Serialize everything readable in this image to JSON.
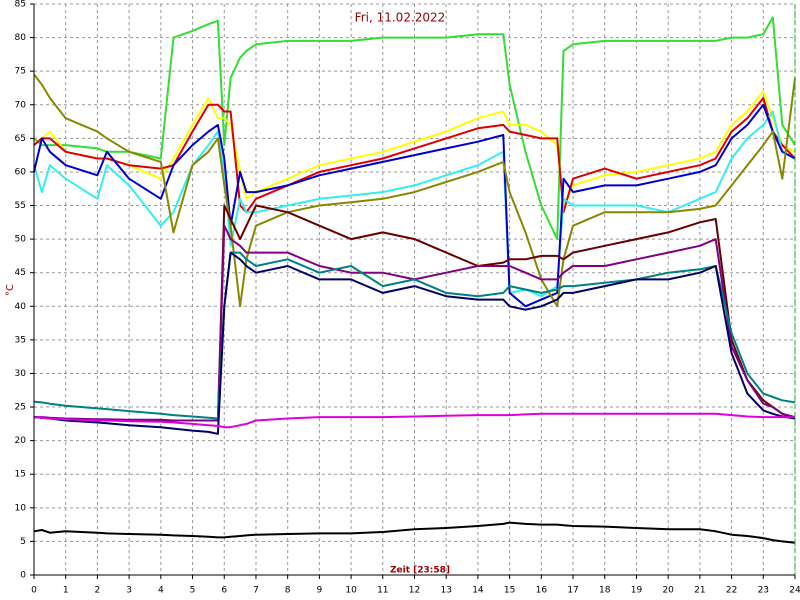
{
  "chart_data": {
    "type": "line",
    "title": "Fri, 11.02.2022",
    "x_label": "Zeit [23:58]",
    "y_label": "°C",
    "xlim": [
      0,
      24
    ],
    "xticks": [
      0,
      1,
      2,
      3,
      4,
      5,
      6,
      7,
      8,
      9,
      10,
      11,
      12,
      13,
      14,
      15,
      16,
      17,
      18,
      19,
      20,
      21,
      22,
      23,
      24
    ],
    "ylim": [
      0,
      85
    ],
    "yticks": [
      0,
      5,
      10,
      15,
      20,
      25,
      30,
      35,
      40,
      45,
      50,
      55,
      60,
      65,
      70,
      75,
      80,
      85
    ],
    "grid": true,
    "x": [
      0,
      0.25,
      0.5,
      1,
      2,
      2.3,
      3,
      4,
      4.4,
      5,
      5.5,
      5.8,
      6,
      6.2,
      6.5,
      6.7,
      7,
      8,
      9,
      10,
      11,
      12,
      13,
      14,
      14.8,
      15,
      15.5,
      16,
      16.5,
      16.7,
      17,
      18,
      19,
      20,
      21,
      21.5,
      22,
      22.5,
      23,
      23.3,
      23.6,
      24
    ],
    "series": [
      {
        "color": "#33dd33",
        "values": [
          65,
          64,
          64,
          64,
          63.5,
          63,
          63,
          62,
          80,
          81,
          82,
          82.5,
          64,
          74,
          77,
          78,
          79,
          79.5,
          79.5,
          79.5,
          80,
          80,
          80,
          80.5,
          80.5,
          73,
          63,
          55,
          50,
          78,
          79,
          79.5,
          79.5,
          79.5,
          79.5,
          79.5,
          80,
          80,
          80.5,
          83,
          67,
          64
        ]
      },
      {
        "color": "#ffff00",
        "values": [
          64,
          65,
          66,
          63,
          62,
          62,
          61,
          59,
          62,
          67,
          71,
          68,
          68,
          67,
          60,
          56,
          57,
          59,
          61,
          62,
          63,
          64.5,
          66,
          68,
          69,
          67,
          67,
          66,
          64,
          55,
          58,
          59.5,
          60,
          61,
          62,
          63,
          67,
          69,
          72,
          68,
          64,
          63
        ]
      },
      {
        "color": "#dd0000",
        "values": [
          64,
          65,
          65,
          63,
          62,
          62,
          61,
          60.5,
          61,
          66,
          70,
          70,
          69,
          69,
          55,
          54,
          56,
          58,
          60,
          61,
          62,
          63.5,
          65,
          66.5,
          67,
          66,
          65.5,
          65,
          65,
          54,
          59,
          60.5,
          59,
          60,
          61,
          62,
          66,
          68,
          71,
          66,
          64,
          62
        ]
      },
      {
        "color": "#33eeee",
        "values": [
          61,
          57,
          61,
          59,
          56,
          61,
          58,
          52,
          54,
          61,
          64,
          66,
          60,
          49,
          56,
          54,
          54,
          55,
          56,
          56.5,
          57,
          58,
          59.5,
          61,
          63,
          42,
          42.5,
          41.5,
          43,
          56,
          55,
          55,
          55,
          54,
          56,
          57,
          62,
          65,
          67,
          69,
          63,
          62
        ]
      },
      {
        "color": "#0000cc",
        "values": [
          60,
          65,
          63,
          61,
          59.5,
          63,
          59,
          56,
          61,
          64,
          66,
          67,
          62,
          52,
          60,
          57,
          57,
          58,
          59.5,
          60.5,
          61.5,
          62.5,
          63.5,
          64.5,
          65.5,
          42,
          40,
          41,
          42,
          59,
          57,
          58,
          58,
          59,
          60,
          61,
          65,
          67,
          70,
          66,
          63,
          62
        ]
      },
      {
        "color": "#888800",
        "values": [
          74.5,
          73,
          71,
          68,
          66,
          65,
          63,
          61.5,
          51,
          61,
          63,
          65,
          58,
          52,
          40,
          47,
          52,
          54,
          55,
          55.5,
          56,
          57,
          58.5,
          60,
          61.5,
          57,
          51,
          44,
          40,
          47,
          52,
          54,
          54,
          54,
          54.5,
          55,
          58,
          61,
          64,
          66,
          59,
          74
        ]
      },
      {
        "color": "#660000",
        "values": [
          23.5,
          23.4,
          23.3,
          23.2,
          23.1,
          23.1,
          23,
          23,
          23,
          23,
          23,
          23,
          55,
          53,
          50,
          52,
          55,
          54,
          52,
          50,
          51,
          50,
          48,
          46,
          46.5,
          47,
          47,
          47.5,
          47.5,
          47,
          48,
          49,
          50,
          51,
          52.5,
          53,
          35,
          29,
          26,
          25,
          24,
          23.3
        ]
      },
      {
        "color": "#800080",
        "values": [
          23.5,
          23.5,
          23.4,
          23.3,
          23.2,
          23.2,
          23.1,
          23.1,
          23,
          23,
          23,
          23,
          52,
          50,
          49,
          48,
          48,
          48,
          46,
          45,
          45,
          44,
          45,
          46,
          46,
          46,
          45,
          44,
          44,
          45,
          46,
          46,
          47,
          48,
          49,
          50,
          34,
          29,
          25.5,
          25,
          24,
          23.5
        ]
      },
      {
        "color": "#008080",
        "values": [
          25.8,
          25.7,
          25.5,
          25.2,
          24.8,
          24.7,
          24.4,
          24,
          23.8,
          23.6,
          23.4,
          23.3,
          40,
          48,
          48,
          47,
          46,
          47,
          45,
          46,
          43,
          44,
          42,
          41.5,
          42,
          43,
          42.5,
          42,
          42.5,
          43,
          43,
          43.5,
          44,
          45,
          45.5,
          46,
          36,
          30,
          27,
          26.5,
          26,
          25.7
        ]
      },
      {
        "color": "#000066",
        "values": [
          23.5,
          23.4,
          23.3,
          23,
          22.7,
          22.6,
          22.3,
          22,
          21.8,
          21.5,
          21.3,
          21,
          40,
          48,
          47,
          46,
          45,
          46,
          44,
          44,
          42,
          43,
          41.5,
          41,
          41,
          40,
          39.5,
          40,
          41,
          42,
          42,
          43,
          44,
          44,
          45,
          46,
          33,
          27,
          24.5,
          24,
          23.6,
          23.3
        ]
      },
      {
        "color": "#dd00dd",
        "values": [
          23.5,
          23.4,
          23.3,
          23.2,
          23,
          23,
          22.9,
          22.8,
          22.7,
          22.5,
          22.3,
          22.2,
          22,
          22,
          22.3,
          22.5,
          23,
          23.3,
          23.5,
          23.5,
          23.5,
          23.6,
          23.7,
          23.8,
          23.8,
          23.8,
          23.9,
          24,
          24,
          24,
          24,
          24,
          24,
          24,
          24,
          24,
          23.8,
          23.6,
          23.5,
          23.5,
          23.5,
          23.5
        ]
      },
      {
        "color": "#000000",
        "values": [
          6.5,
          6.7,
          6.3,
          6.5,
          6.3,
          6.2,
          6.1,
          6,
          5.9,
          5.8,
          5.7,
          5.6,
          5.6,
          5.7,
          5.8,
          5.9,
          6,
          6.1,
          6.2,
          6.2,
          6.4,
          6.8,
          7,
          7.3,
          7.6,
          7.8,
          7.6,
          7.5,
          7.5,
          7.4,
          7.3,
          7.2,
          7,
          6.8,
          6.8,
          6.5,
          6,
          5.8,
          5.5,
          5.2,
          5,
          4.8
        ]
      }
    ]
  }
}
